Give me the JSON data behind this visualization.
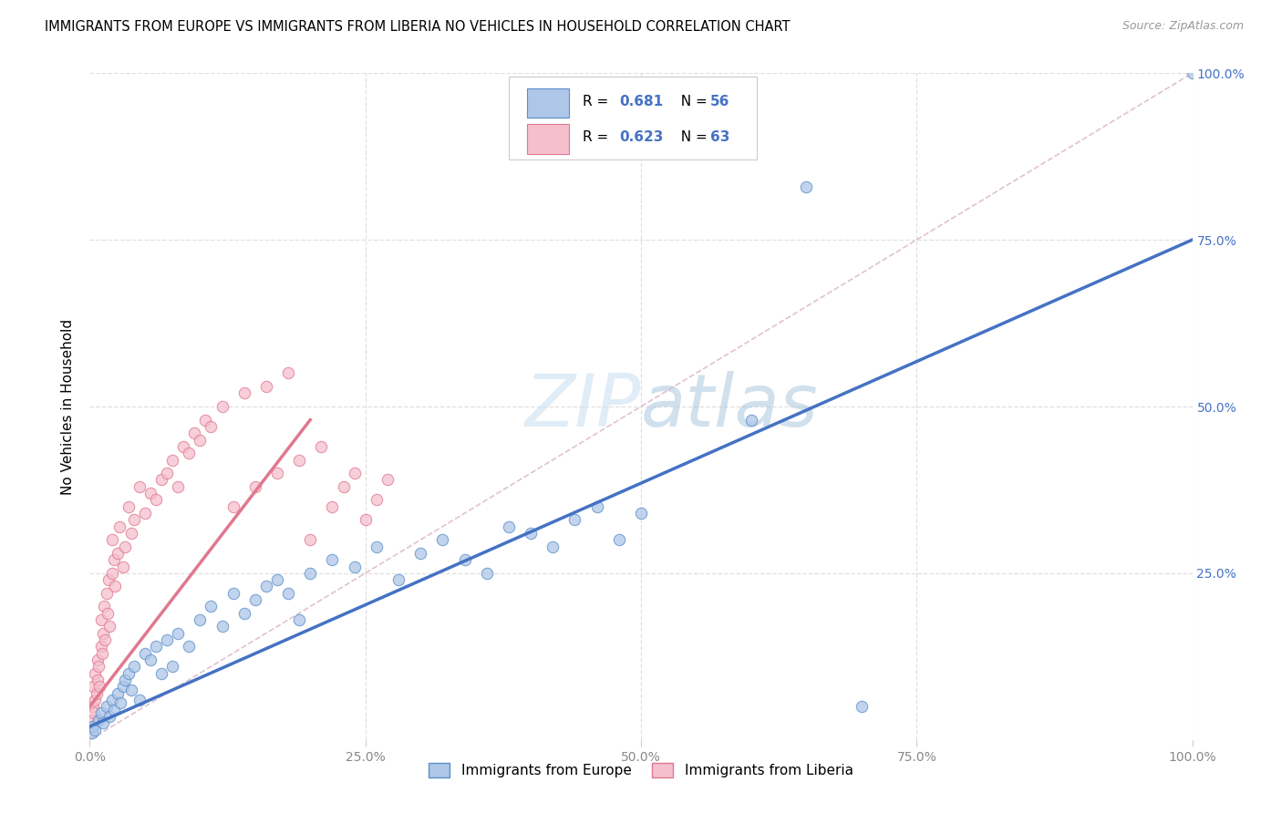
{
  "title": "IMMIGRANTS FROM EUROPE VS IMMIGRANTS FROM LIBERIA NO VEHICLES IN HOUSEHOLD CORRELATION CHART",
  "source": "Source: ZipAtlas.com",
  "ylabel": "No Vehicles in Household",
  "europe_color": "#aec6e8",
  "europe_edge_color": "#5b8fc9",
  "liberia_color": "#f5bfce",
  "liberia_edge_color": "#e07890",
  "regression_europe_color": "#4472c4",
  "regression_liberia_color": "#e07890",
  "diagonal_color": "#ddbbcc",
  "R_europe": 0.681,
  "N_europe": 56,
  "R_liberia": 0.623,
  "N_liberia": 63,
  "legend_N_color": "#4472c4",
  "watermark_zip": "ZIP",
  "watermark_atlas": "atlas",
  "ytick_color": "#4472c4",
  "xtick_color": "#888888",
  "europe_x": [
    0.2,
    0.3,
    0.5,
    0.8,
    1.0,
    1.2,
    1.5,
    1.8,
    2.0,
    2.2,
    2.5,
    2.8,
    3.0,
    3.2,
    3.5,
    3.8,
    4.0,
    4.5,
    5.0,
    5.5,
    6.0,
    6.5,
    7.0,
    7.5,
    8.0,
    9.0,
    10.0,
    11.0,
    12.0,
    13.0,
    14.0,
    15.0,
    16.0,
    17.0,
    18.0,
    19.0,
    20.0,
    22.0,
    24.0,
    26.0,
    28.0,
    30.0,
    32.0,
    34.0,
    36.0,
    38.0,
    40.0,
    42.0,
    44.0,
    46.0,
    48.0,
    50.0,
    60.0,
    65.0,
    70.0,
    100.0
  ],
  "europe_y": [
    1.0,
    2.0,
    1.5,
    3.0,
    4.0,
    2.5,
    5.0,
    3.5,
    6.0,
    4.5,
    7.0,
    5.5,
    8.0,
    9.0,
    10.0,
    7.5,
    11.0,
    6.0,
    13.0,
    12.0,
    14.0,
    10.0,
    15.0,
    11.0,
    16.0,
    14.0,
    18.0,
    20.0,
    17.0,
    22.0,
    19.0,
    21.0,
    23.0,
    24.0,
    22.0,
    18.0,
    25.0,
    27.0,
    26.0,
    29.0,
    24.0,
    28.0,
    30.0,
    27.0,
    25.0,
    32.0,
    31.0,
    29.0,
    33.0,
    35.0,
    30.0,
    34.0,
    48.0,
    83.0,
    5.0,
    100.0
  ],
  "liberia_x": [
    0.1,
    0.2,
    0.3,
    0.3,
    0.4,
    0.5,
    0.5,
    0.6,
    0.7,
    0.7,
    0.8,
    0.9,
    1.0,
    1.0,
    1.1,
    1.2,
    1.3,
    1.4,
    1.5,
    1.6,
    1.7,
    1.8,
    2.0,
    2.0,
    2.2,
    2.3,
    2.5,
    2.7,
    3.0,
    3.2,
    3.5,
    3.8,
    4.0,
    4.5,
    5.0,
    5.5,
    6.0,
    6.5,
    7.0,
    7.5,
    8.0,
    8.5,
    9.0,
    9.5,
    10.0,
    10.5,
    11.0,
    12.0,
    13.0,
    14.0,
    15.0,
    16.0,
    17.0,
    18.0,
    19.0,
    20.0,
    21.0,
    22.0,
    23.0,
    24.0,
    25.0,
    26.0,
    27.0
  ],
  "liberia_y": [
    2.0,
    3.0,
    5.0,
    8.0,
    4.0,
    6.0,
    10.0,
    7.0,
    9.0,
    12.0,
    11.0,
    8.0,
    14.0,
    18.0,
    13.0,
    16.0,
    20.0,
    15.0,
    22.0,
    19.0,
    24.0,
    17.0,
    25.0,
    30.0,
    27.0,
    23.0,
    28.0,
    32.0,
    26.0,
    29.0,
    35.0,
    31.0,
    33.0,
    38.0,
    34.0,
    37.0,
    36.0,
    39.0,
    40.0,
    42.0,
    38.0,
    44.0,
    43.0,
    46.0,
    45.0,
    48.0,
    47.0,
    50.0,
    35.0,
    52.0,
    38.0,
    53.0,
    40.0,
    55.0,
    42.0,
    30.0,
    44.0,
    35.0,
    38.0,
    40.0,
    33.0,
    36.0,
    39.0
  ]
}
